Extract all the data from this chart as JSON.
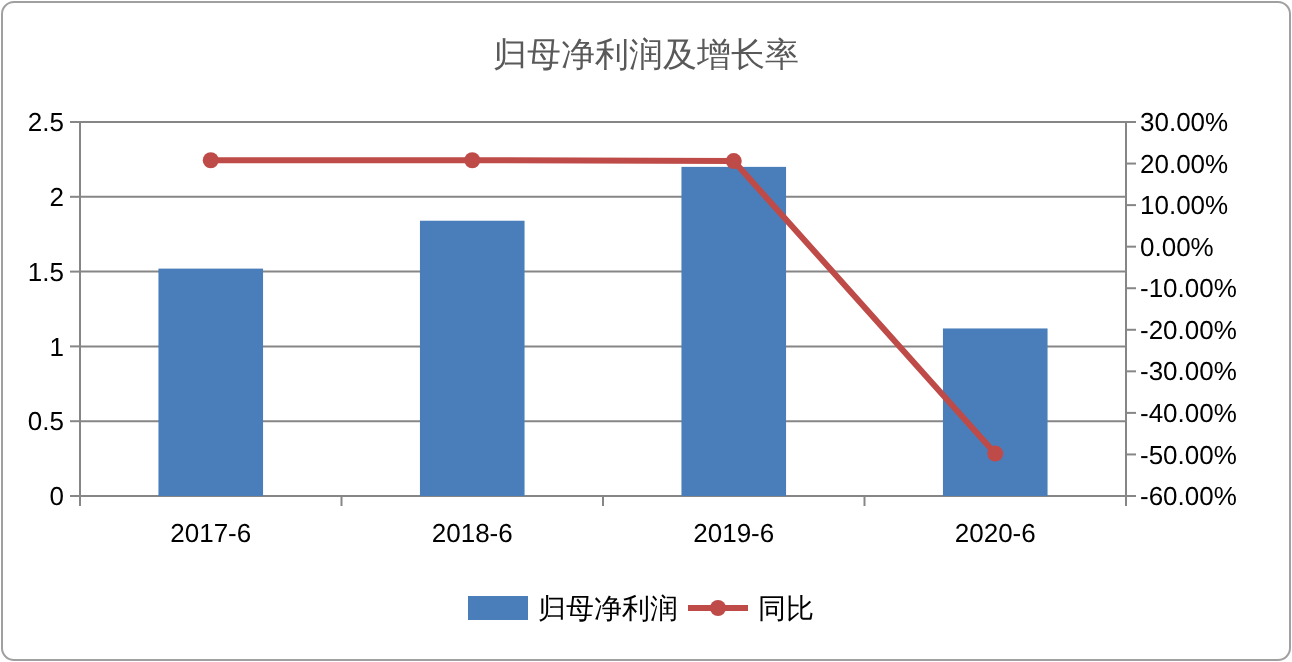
{
  "chart_data": {
    "type": "bar",
    "title": "归母净利润及增长率",
    "categories": [
      "2017-6",
      "2018-6",
      "2019-6",
      "2020-6"
    ],
    "series": [
      {
        "name": "归母净利润",
        "color": "#4a7ebb",
        "values": [
          1.52,
          1.84,
          2.2,
          1.12
        ]
      },
      {
        "name": "同比",
        "type": "line",
        "axis": "y2",
        "color": "#be4b48",
        "values": [
          20.8,
          20.8,
          20.6,
          -49.8
        ]
      }
    ],
    "ylim": [
      0,
      2.5
    ],
    "yticks": [
      0,
      0.5,
      1,
      1.5,
      2,
      2.5
    ],
    "y2lim": [
      -60,
      30
    ],
    "y2ticks": [
      {
        "value": -60,
        "label": "-60.00%"
      },
      {
        "value": -50,
        "label": "-50.00%"
      },
      {
        "value": -40,
        "label": "-40.00%"
      },
      {
        "value": -30,
        "label": "-30.00%"
      },
      {
        "value": -20,
        "label": "-20.00%"
      },
      {
        "value": -10,
        "label": "-10.00%"
      },
      {
        "value": 0,
        "label": "0.00%"
      },
      {
        "value": 10,
        "label": "10.00%"
      },
      {
        "value": 20,
        "label": "20.00%"
      },
      {
        "value": 30,
        "label": "30.00%"
      }
    ],
    "grid": "y",
    "legend": "bottom",
    "marker": "circle"
  }
}
